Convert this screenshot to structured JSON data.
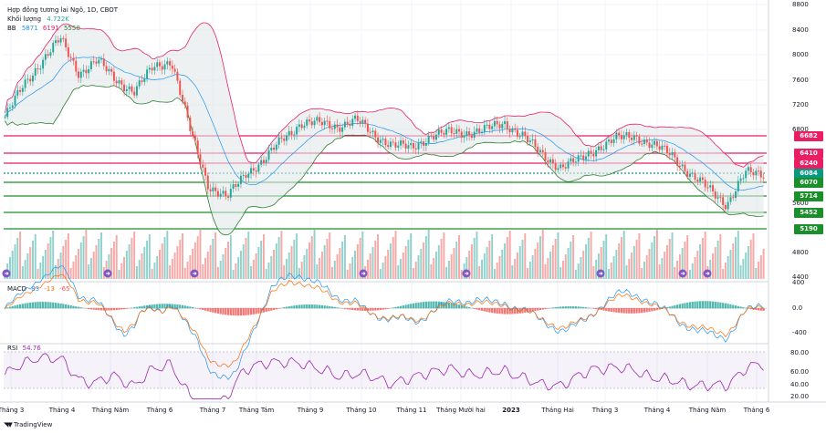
{
  "header": {
    "title": "Hợp đồng tương lai Ngô, 1D, CBOT",
    "volume_label": "Khối lượng",
    "volume_value": "4.722K",
    "bb_label": "BB",
    "bb_values": [
      "5871",
      "6191",
      "5550"
    ]
  },
  "macd": {
    "label": "MACD",
    "values": [
      "83",
      "-13",
      "-65"
    ]
  },
  "rsi": {
    "label": "RSI",
    "value": "54.76"
  },
  "price_axis": [
    "8800",
    "8400",
    "8000",
    "7600",
    "7200",
    "6800",
    "5600",
    "4800",
    "4400"
  ],
  "price_tags": [
    {
      "value": "6682",
      "color": "#e91e63"
    },
    {
      "value": "6410",
      "color": "#e91e63"
    },
    {
      "value": "6240",
      "color": "#e91e63"
    },
    {
      "value": "6084",
      "color": "#089981"
    },
    {
      "value": "6070",
      "color": "#1b8f2a"
    },
    {
      "value": "5714",
      "color": "#1b8f2a"
    },
    {
      "value": "5452",
      "color": "#1b8f2a"
    },
    {
      "value": "5190",
      "color": "#1b8f2a"
    }
  ],
  "macd_axis": [
    "400",
    "0.0",
    "-400"
  ],
  "rsi_axis": [
    "80.00",
    "60.00",
    "40.00",
    "20.00"
  ],
  "x_axis": [
    "Tháng 3",
    "Tháng 4",
    "Tháng Năm",
    "Tháng 6",
    "Tháng 7",
    "Tháng Tám",
    "Tháng 9",
    "Tháng 10",
    "Tháng 11",
    "Tháng Mười hai",
    "2023",
    "Tháng Hai",
    "Tháng 3",
    "Tháng 4",
    "Tháng Năm",
    "Tháng 6"
  ],
  "brand": "TradingView",
  "colors": {
    "up": "#26a69a",
    "down": "#ef5350",
    "bb_upper": "#e91e63",
    "bb_lower": "#2e7d32",
    "bb_basis": "#2196f3",
    "rsi": "#9c27b0"
  },
  "chart_data": {
    "type": "candlestick",
    "title": "Hợp đồng tương lai Ngô, 1D, CBOT",
    "ylabel": "",
    "ylim": [
      4400,
      8800
    ],
    "horizontal_levels": [
      6682,
      6410,
      6240,
      6084,
      6070,
      5714,
      5452,
      5190
    ],
    "close_path": [
      7000,
      7500,
      7900,
      8250,
      7700,
      7900,
      7600,
      7400,
      7800,
      7900,
      6800,
      5900,
      5700,
      6100,
      6300,
      6650,
      6900,
      6900,
      6850,
      6950,
      6700,
      6550,
      6500,
      6700,
      6750,
      6750,
      6800,
      6900,
      6700,
      6400,
      6200,
      6300,
      6500,
      6650,
      6700,
      6550,
      6400,
      6100,
      5850,
      5600,
      6100,
      6084
    ]
  }
}
